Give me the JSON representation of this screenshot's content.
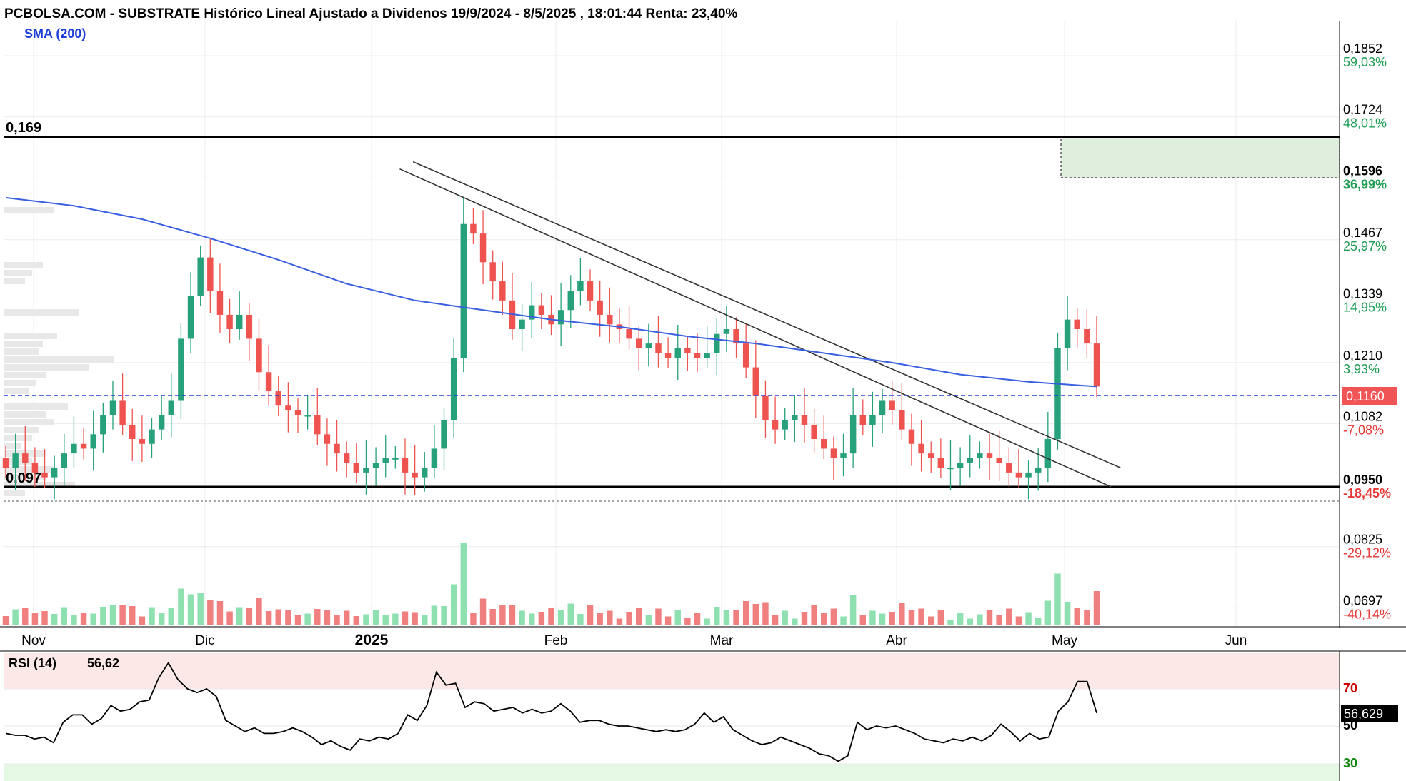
{
  "title": "PCBOLSA.COM - SUBSTRATE Histórico Lineal Ajustado a Dividenos 19/9/2024 - 8/5/2025 , 18:01:44 Renta: 23,40%",
  "indicator_label": "SMA (200)",
  "colors": {
    "up": "#26a17b",
    "down": "#ef5350",
    "sma": "#3a5fe0",
    "rsi": "#000000",
    "current_price_box": "#f05454",
    "vol_up": "#8fe0b0",
    "vol_down": "#f08080"
  },
  "levels": {
    "resistance": {
      "value": 0.169,
      "label": "0,169"
    },
    "support": {
      "value": 0.097,
      "label": "0,097"
    }
  },
  "current_price": {
    "value": 0.116,
    "label": "0,1160"
  },
  "rsi": {
    "label": "RSI (14)",
    "value_label": "56,62",
    "badge": "56,629",
    "levels": [
      "70",
      "50",
      "30"
    ]
  },
  "chart_data": {
    "type": "candlestick",
    "title": "PCBOLSA.COM - SUBSTRATE Histórico Lineal Ajustado a Dividenos 19/9/2024 - 8/5/2025 , 18:01:44 Renta: 23,40%",
    "x_labels": [
      "Nov",
      "Dic",
      "2025",
      "Feb",
      "Mar",
      "Abr",
      "May",
      "Jun"
    ],
    "y_ticks": [
      {
        "price": "0,1852",
        "pct": "59,03%"
      },
      {
        "price": "0,1724",
        "pct": "48,01%"
      },
      {
        "price": "0,1596",
        "pct": "36,99%"
      },
      {
        "price": "0,1467",
        "pct": "25,97%"
      },
      {
        "price": "0,1339",
        "pct": "14,95%"
      },
      {
        "price": "0,1210",
        "pct": "3,93%"
      },
      {
        "price": "0,1082",
        "pct": "-7,08%"
      },
      {
        "price": "0,0950",
        "pct": "-18,45%"
      },
      {
        "price": "0,0825",
        "pct": "-29,12%"
      },
      {
        "price": "0,0697",
        "pct": "-40,14%"
      }
    ],
    "ylim": [
      0.068,
      0.193
    ],
    "close_path": [
      0.099,
      0.102,
      0.1,
      0.098,
      0.097,
      0.099,
      0.102,
      0.104,
      0.103,
      0.106,
      0.11,
      0.113,
      0.108,
      0.105,
      0.104,
      0.107,
      0.11,
      0.113,
      0.126,
      0.135,
      0.143,
      0.136,
      0.131,
      0.128,
      0.131,
      0.126,
      0.119,
      0.115,
      0.112,
      0.111,
      0.11,
      0.11,
      0.106,
      0.104,
      0.102,
      0.1,
      0.098,
      0.099,
      0.1,
      0.101,
      0.101,
      0.098,
      0.097,
      0.099,
      0.103,
      0.109,
      0.122,
      0.15,
      0.148,
      0.142,
      0.138,
      0.134,
      0.128,
      0.13,
      0.133,
      0.131,
      0.129,
      0.132,
      0.136,
      0.138,
      0.134,
      0.131,
      0.129,
      0.128,
      0.126,
      0.124,
      0.125,
      0.123,
      0.122,
      0.124,
      0.123,
      0.122,
      0.123,
      0.127,
      0.128,
      0.125,
      0.12,
      0.114,
      0.109,
      0.107,
      0.109,
      0.11,
      0.108,
      0.105,
      0.103,
      0.101,
      0.102,
      0.11,
      0.108,
      0.11,
      0.113,
      0.111,
      0.107,
      0.104,
      0.102,
      0.101,
      0.099,
      0.099,
      0.1,
      0.101,
      0.102,
      0.101,
      0.1,
      0.098,
      0.097,
      0.098,
      0.099,
      0.105,
      0.124,
      0.13,
      0.128,
      0.125,
      0.116
    ],
    "sma_path": [
      0.1555,
      0.1538,
      0.151,
      0.147,
      0.1425,
      0.1375,
      0.134,
      0.132,
      0.13,
      0.1285,
      0.1265,
      0.125,
      0.123,
      0.121,
      0.1185,
      0.117,
      0.116
    ],
    "trendlines": [
      {
        "x1": 0.2965,
        "y1": 0.1615,
        "x2": 0.829,
        "y2": 0.095
      },
      {
        "x1": 0.3065,
        "y1": 0.163,
        "x2": 0.836,
        "y2": 0.099
      }
    ],
    "rsi_path": [
      46,
      45,
      45,
      43,
      44,
      41,
      52,
      56,
      56,
      51,
      54,
      61,
      58,
      59,
      63,
      64,
      76,
      84,
      75,
      70,
      68,
      70,
      66,
      53,
      50,
      47,
      49,
      46,
      46,
      47,
      49,
      47,
      44,
      40,
      42,
      39,
      37,
      43,
      42,
      44,
      43,
      46,
      56,
      53,
      61,
      79,
      72,
      73,
      60,
      63,
      62,
      58,
      59,
      60,
      57,
      59,
      57,
      58,
      62,
      58,
      52,
      53,
      53,
      51,
      50,
      50,
      49,
      48,
      47,
      48,
      47,
      48,
      51,
      57,
      52,
      55,
      48,
      45,
      42,
      40,
      41,
      44,
      42,
      40,
      38,
      35,
      34,
      31,
      34,
      52,
      48,
      50,
      49,
      50,
      48,
      46,
      43,
      42,
      41,
      43,
      42,
      44,
      42,
      45,
      51,
      47,
      42,
      46,
      43,
      44,
      58,
      63,
      74,
      74,
      57
    ]
  }
}
